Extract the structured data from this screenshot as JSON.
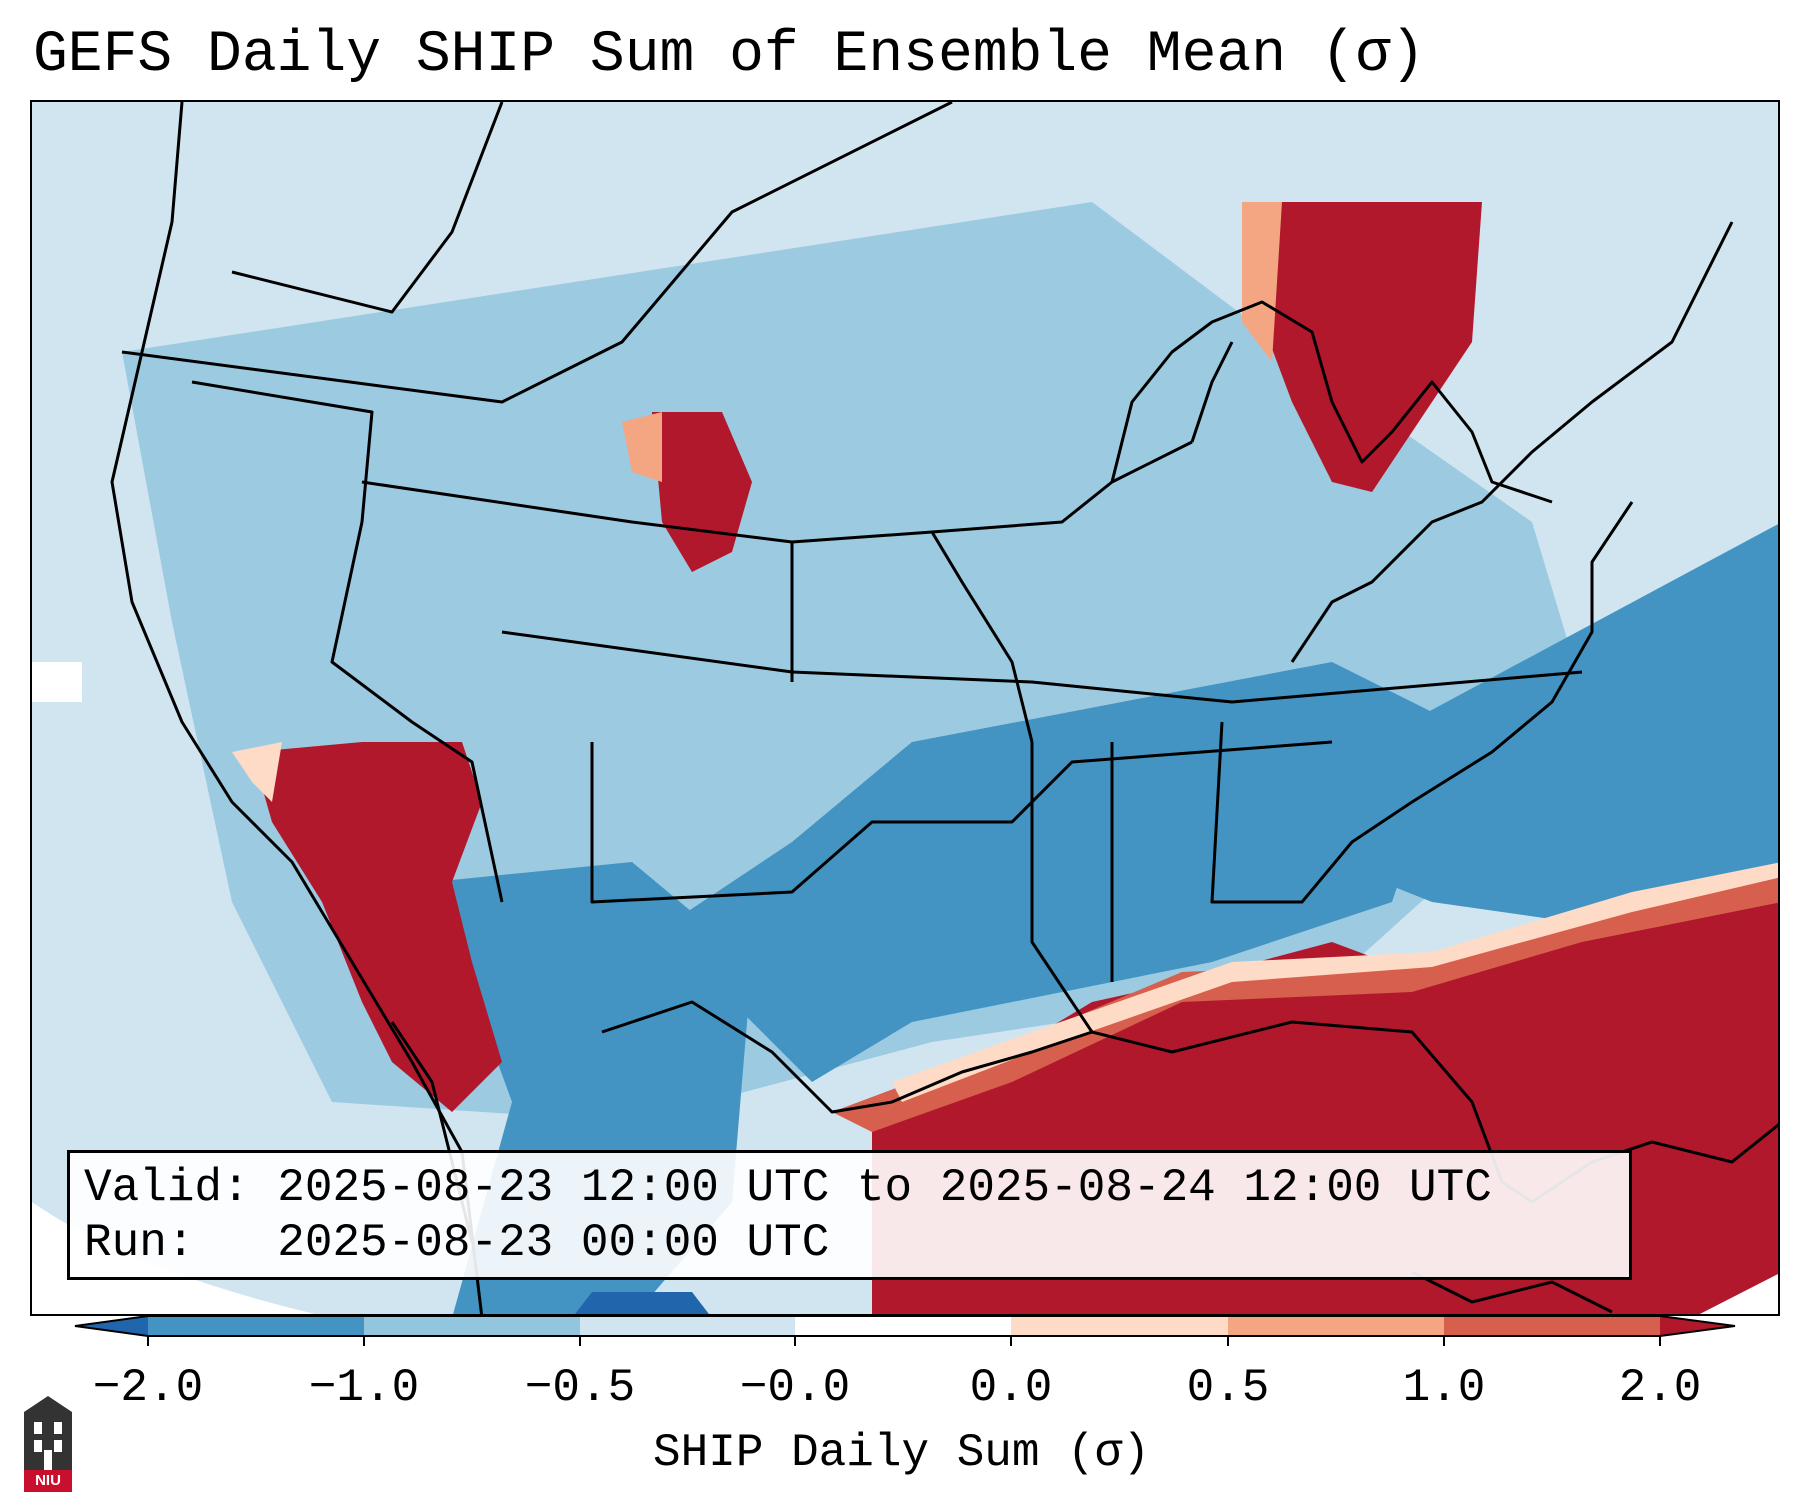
{
  "title": "GEFS Daily SHIP Sum of Ensemble Mean (σ)",
  "info": {
    "valid_line": "Valid: 2025-08-23 12:00 UTC to 2025-08-24 12:00 UTC",
    "run_line": "Run:   2025-08-23 00:00 UTC"
  },
  "colorbar": {
    "label": "SHIP Daily Sum (σ)",
    "ticks": [
      "−2.0",
      "−1.0",
      "−0.5",
      "−0.0",
      "0.0",
      "0.5",
      "1.0",
      "2.0"
    ],
    "colors": [
      "#2166ac",
      "#4393c3",
      "#92c5de",
      "#d1e5f0",
      "#ffffff",
      "#fddbc7",
      "#f4a582",
      "#d6604d",
      "#b2182b"
    ]
  },
  "logo": {
    "text": "NIU",
    "icon": "university-tower-icon"
  },
  "map_regions": [
    {
      "name": "southeast-us-and-gulf",
      "value_sigma": 2.0,
      "color": "#b2182b"
    },
    {
      "name": "southwest-desert-and-baja",
      "value_sigma": 2.0,
      "color": "#b2182b"
    },
    {
      "name": "northern-michigan-ontario",
      "value_sigma": 2.0,
      "color": "#b2182b"
    },
    {
      "name": "colorado-front-range",
      "value_sigma": 2.0,
      "color": "#b2182b"
    },
    {
      "name": "atlantic-ocean",
      "value_sigma": -1.0,
      "color": "#4393c3"
    },
    {
      "name": "south-central-us",
      "value_sigma": -1.0,
      "color": "#4393c3"
    }
  ]
}
